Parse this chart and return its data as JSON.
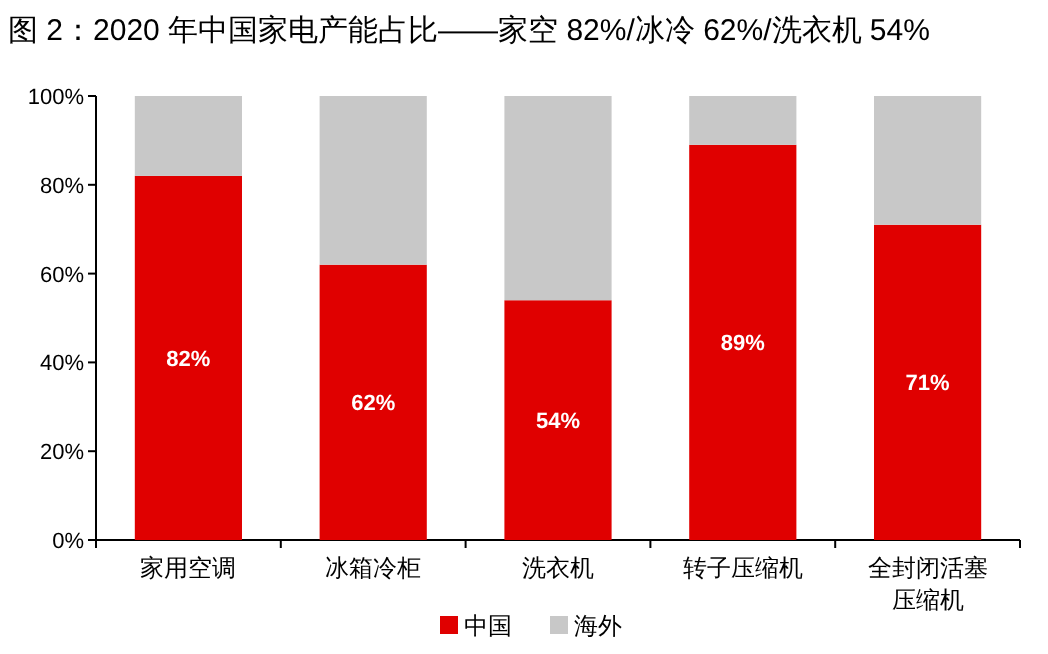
{
  "chart_data": {
    "type": "bar",
    "stacked": true,
    "title": "图 2：2020 年中国家电产能占比——家空 82%/冰冷 62%/洗衣机 54%",
    "categories": [
      "家用空调",
      "冰箱冷柜",
      "洗衣机",
      "转子压缩机",
      "全封闭活塞压缩机"
    ],
    "series": [
      {
        "name": "中国",
        "color": "#e00000",
        "values": [
          82,
          62,
          54,
          89,
          71
        ],
        "value_labels": [
          "82%",
          "62%",
          "54%",
          "89%",
          "71%"
        ]
      },
      {
        "name": "海外",
        "color": "#c8c8c8",
        "values": [
          18,
          38,
          46,
          11,
          29
        ]
      }
    ],
    "ylim": [
      0,
      100
    ],
    "yticks": [
      {
        "value": 0,
        "label": "0%"
      },
      {
        "value": 20,
        "label": "20%"
      },
      {
        "value": 40,
        "label": "40%"
      },
      {
        "value": 60,
        "label": "60%"
      },
      {
        "value": 80,
        "label": "80%"
      },
      {
        "value": 100,
        "label": "100%"
      }
    ],
    "legend": "bottom"
  }
}
